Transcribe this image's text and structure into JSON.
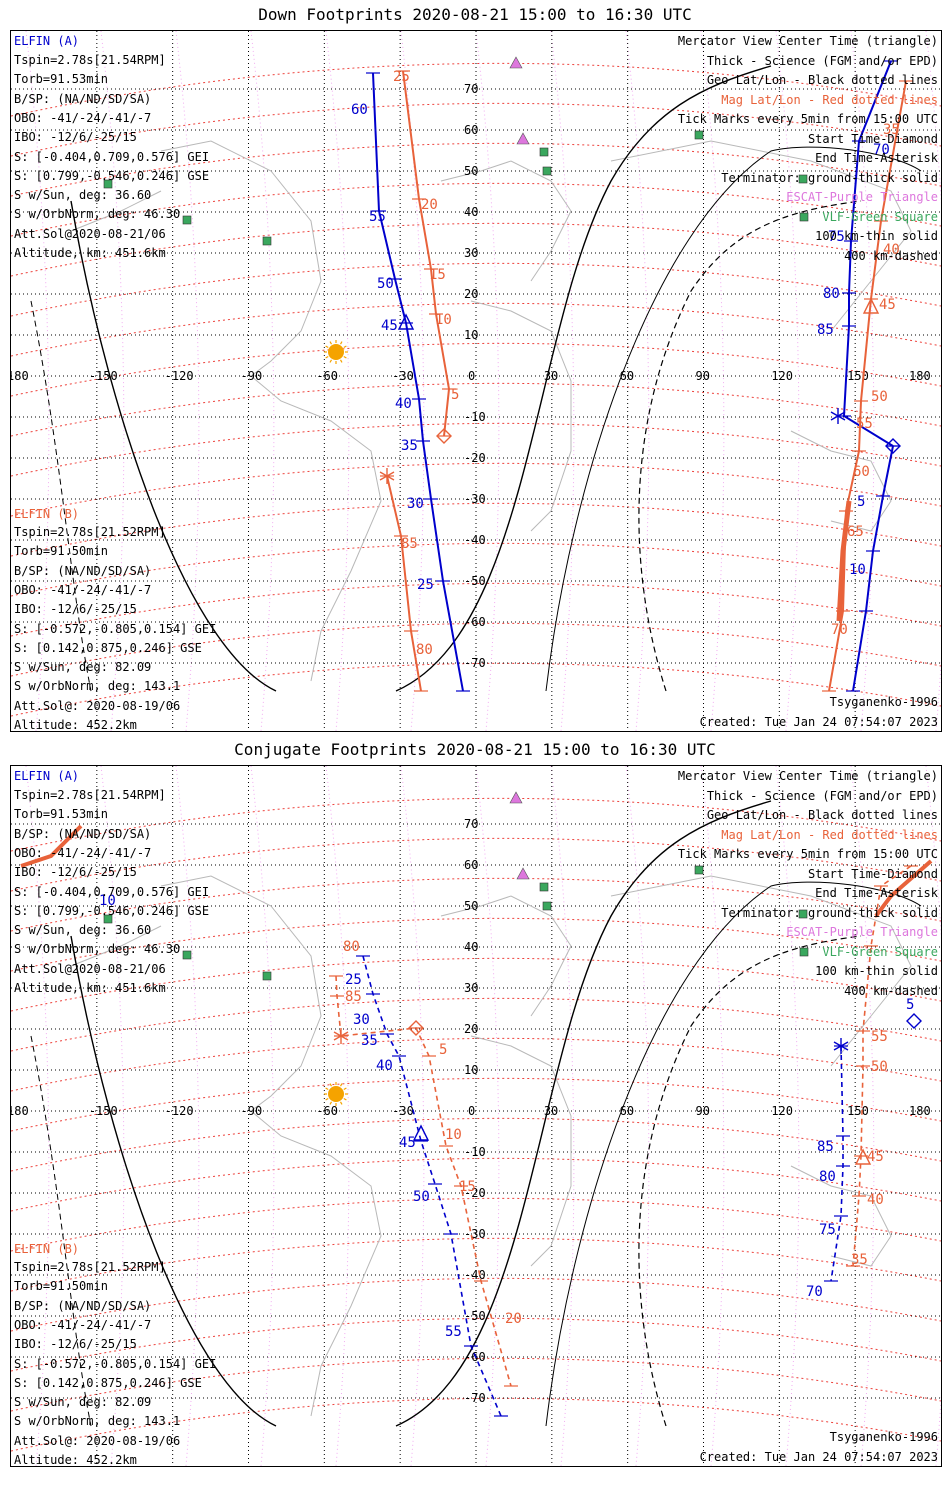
{
  "titles": {
    "top": "Down Footprints 2020-08-21 15:00 to 16:30 UTC",
    "bottom": "Conjugate Footprints 2020-08-21 15:00 to 16:30 UTC"
  },
  "elfin_a": {
    "name": "ELFIN (A)",
    "lines": [
      "Tspin=2.78s[21.54RPM]",
      "Torb=91.53min",
      "B/SP: (NA/ND/SD/SA)",
      "OBO: -41/-24/-41/-7",
      "IBO: -12/6/-25/15",
      "S: [-0.404,0.709,0.576] GEI",
      "S: [0.799,-0.546,0.246] GSE",
      "S w/Sun, deg: 36.60",
      "S w/OrbNorm, deg: 46.30",
      "Att.Sol@2020-08-21/06",
      "Altitude, km: 451.6km"
    ]
  },
  "elfin_b": {
    "name": "ELFIN (B)",
    "lines": [
      "Tspin=2.78s[21.52RPM]",
      "Torb=91.50min",
      "B/SP: (NA/ND/SD/SA)",
      "OBO: -41/-24/-41/-7",
      "IBO: -12/6/-25/15",
      "S: [-0.572,-0.805,0.154] GEI",
      "S: [0.142,0.875,0.246] GSE",
      "S w/Sun, deg: 82.09",
      "S w/OrbNorm, deg: 143.1",
      "Att.Sol@: 2020-08-19/06",
      "Altitude: 452.2km"
    ]
  },
  "legend": [
    {
      "text": "Mercator View Center Time (triangle)",
      "color": "#000000"
    },
    {
      "text": "Thick - Science (FGM and/or EPD)",
      "color": "#000000"
    },
    {
      "text": "Geo Lat/Lon - Black dotted lines",
      "color": "#000000"
    },
    {
      "text": "Mag Lat/Lon - Red dotted lines",
      "color": "#e8623a"
    },
    {
      "text": "Tick Marks every 5min from 15:00 UTC",
      "color": "#000000"
    },
    {
      "text": "Start Time-Diamond",
      "color": "#000000"
    },
    {
      "text": "End Time-Asterisk",
      "color": "#000000"
    },
    {
      "text": "Terminator: ground-thick solid",
      "color": "#000000"
    },
    {
      "text": "ESCAT-Purple Triangle",
      "color": "#dd77dd"
    },
    {
      "text": "VLF-Green Square",
      "color": "#3aa75e"
    },
    {
      "text": "100 km-thin solid",
      "color": "#000000"
    },
    {
      "text": "400 km-dashed",
      "color": "#000000"
    }
  ],
  "footer": {
    "model": "Tsyganenko-1996",
    "created": "Created: Tue Jan 24 07:54:07 2023"
  },
  "axes": {
    "lon_ticks": [
      "180",
      "-150",
      "-120",
      "-90",
      "-60",
      "-30",
      "0",
      "30",
      "60",
      "90",
      "120",
      "150",
      "180"
    ],
    "lat_ticks": [
      "70",
      "60",
      "50",
      "40",
      "30",
      "20",
      "10",
      "0",
      "-10",
      "-20",
      "-30",
      "-40",
      "-50",
      "-60",
      "-70"
    ]
  },
  "colors": {
    "elfin_a": "#0000cc",
    "elfin_b": "#e8623a",
    "escat": "#dd77dd",
    "vlf": "#3aa75e",
    "sun": "#f5a300"
  },
  "down_track_labels": {
    "a_west": [
      "60",
      "55",
      "50",
      "45",
      "40",
      "35",
      "30",
      "25"
    ],
    "b_west": [
      "25",
      "20",
      "15",
      "10",
      "5",
      "85",
      "80"
    ],
    "a_east": [
      "70",
      "75",
      "80",
      "85",
      "5",
      "10"
    ],
    "b_east": [
      "35",
      "40",
      "45",
      "50",
      "55",
      "60",
      "65",
      "70"
    ]
  },
  "conj_track_labels": {
    "a_west": [
      "10",
      "25",
      "30",
      "35",
      "40",
      "45",
      "50",
      "55"
    ],
    "b_west": [
      "80",
      "85",
      "5",
      "10",
      "15",
      "20"
    ],
    "a_east": [
      "5",
      "85",
      "80",
      "75",
      "70"
    ],
    "b_east": [
      "55",
      "50",
      "45",
      "40",
      "35"
    ]
  }
}
